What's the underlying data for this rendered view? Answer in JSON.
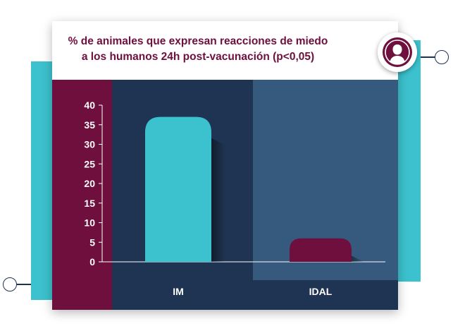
{
  "chart_data": {
    "type": "bar",
    "title": "% de animales que expresan reacciones de miedo a los humanos 24h post-vacunación (p<0,05)",
    "title_lines": [
      "% de animales que expresan reacciones de miedo",
      "a los humanos 24h post-vacunación (p<0,05)"
    ],
    "categories": [
      "IM",
      "IDAL"
    ],
    "values": [
      37,
      6
    ],
    "ylim": [
      0,
      40
    ],
    "yticks": [
      0,
      5,
      10,
      15,
      20,
      25,
      30,
      35,
      40
    ],
    "grid": false,
    "bar_colors": [
      "#3cc2ce",
      "#6e0f3e"
    ]
  },
  "colors": {
    "accent_teal": "#3cc2ce",
    "accent_plum": "#6e0f3e",
    "panel_dark": "#1f3452",
    "panel_light": "#355a7e"
  },
  "icons": {
    "avatar": "user-silhouette-icon"
  }
}
